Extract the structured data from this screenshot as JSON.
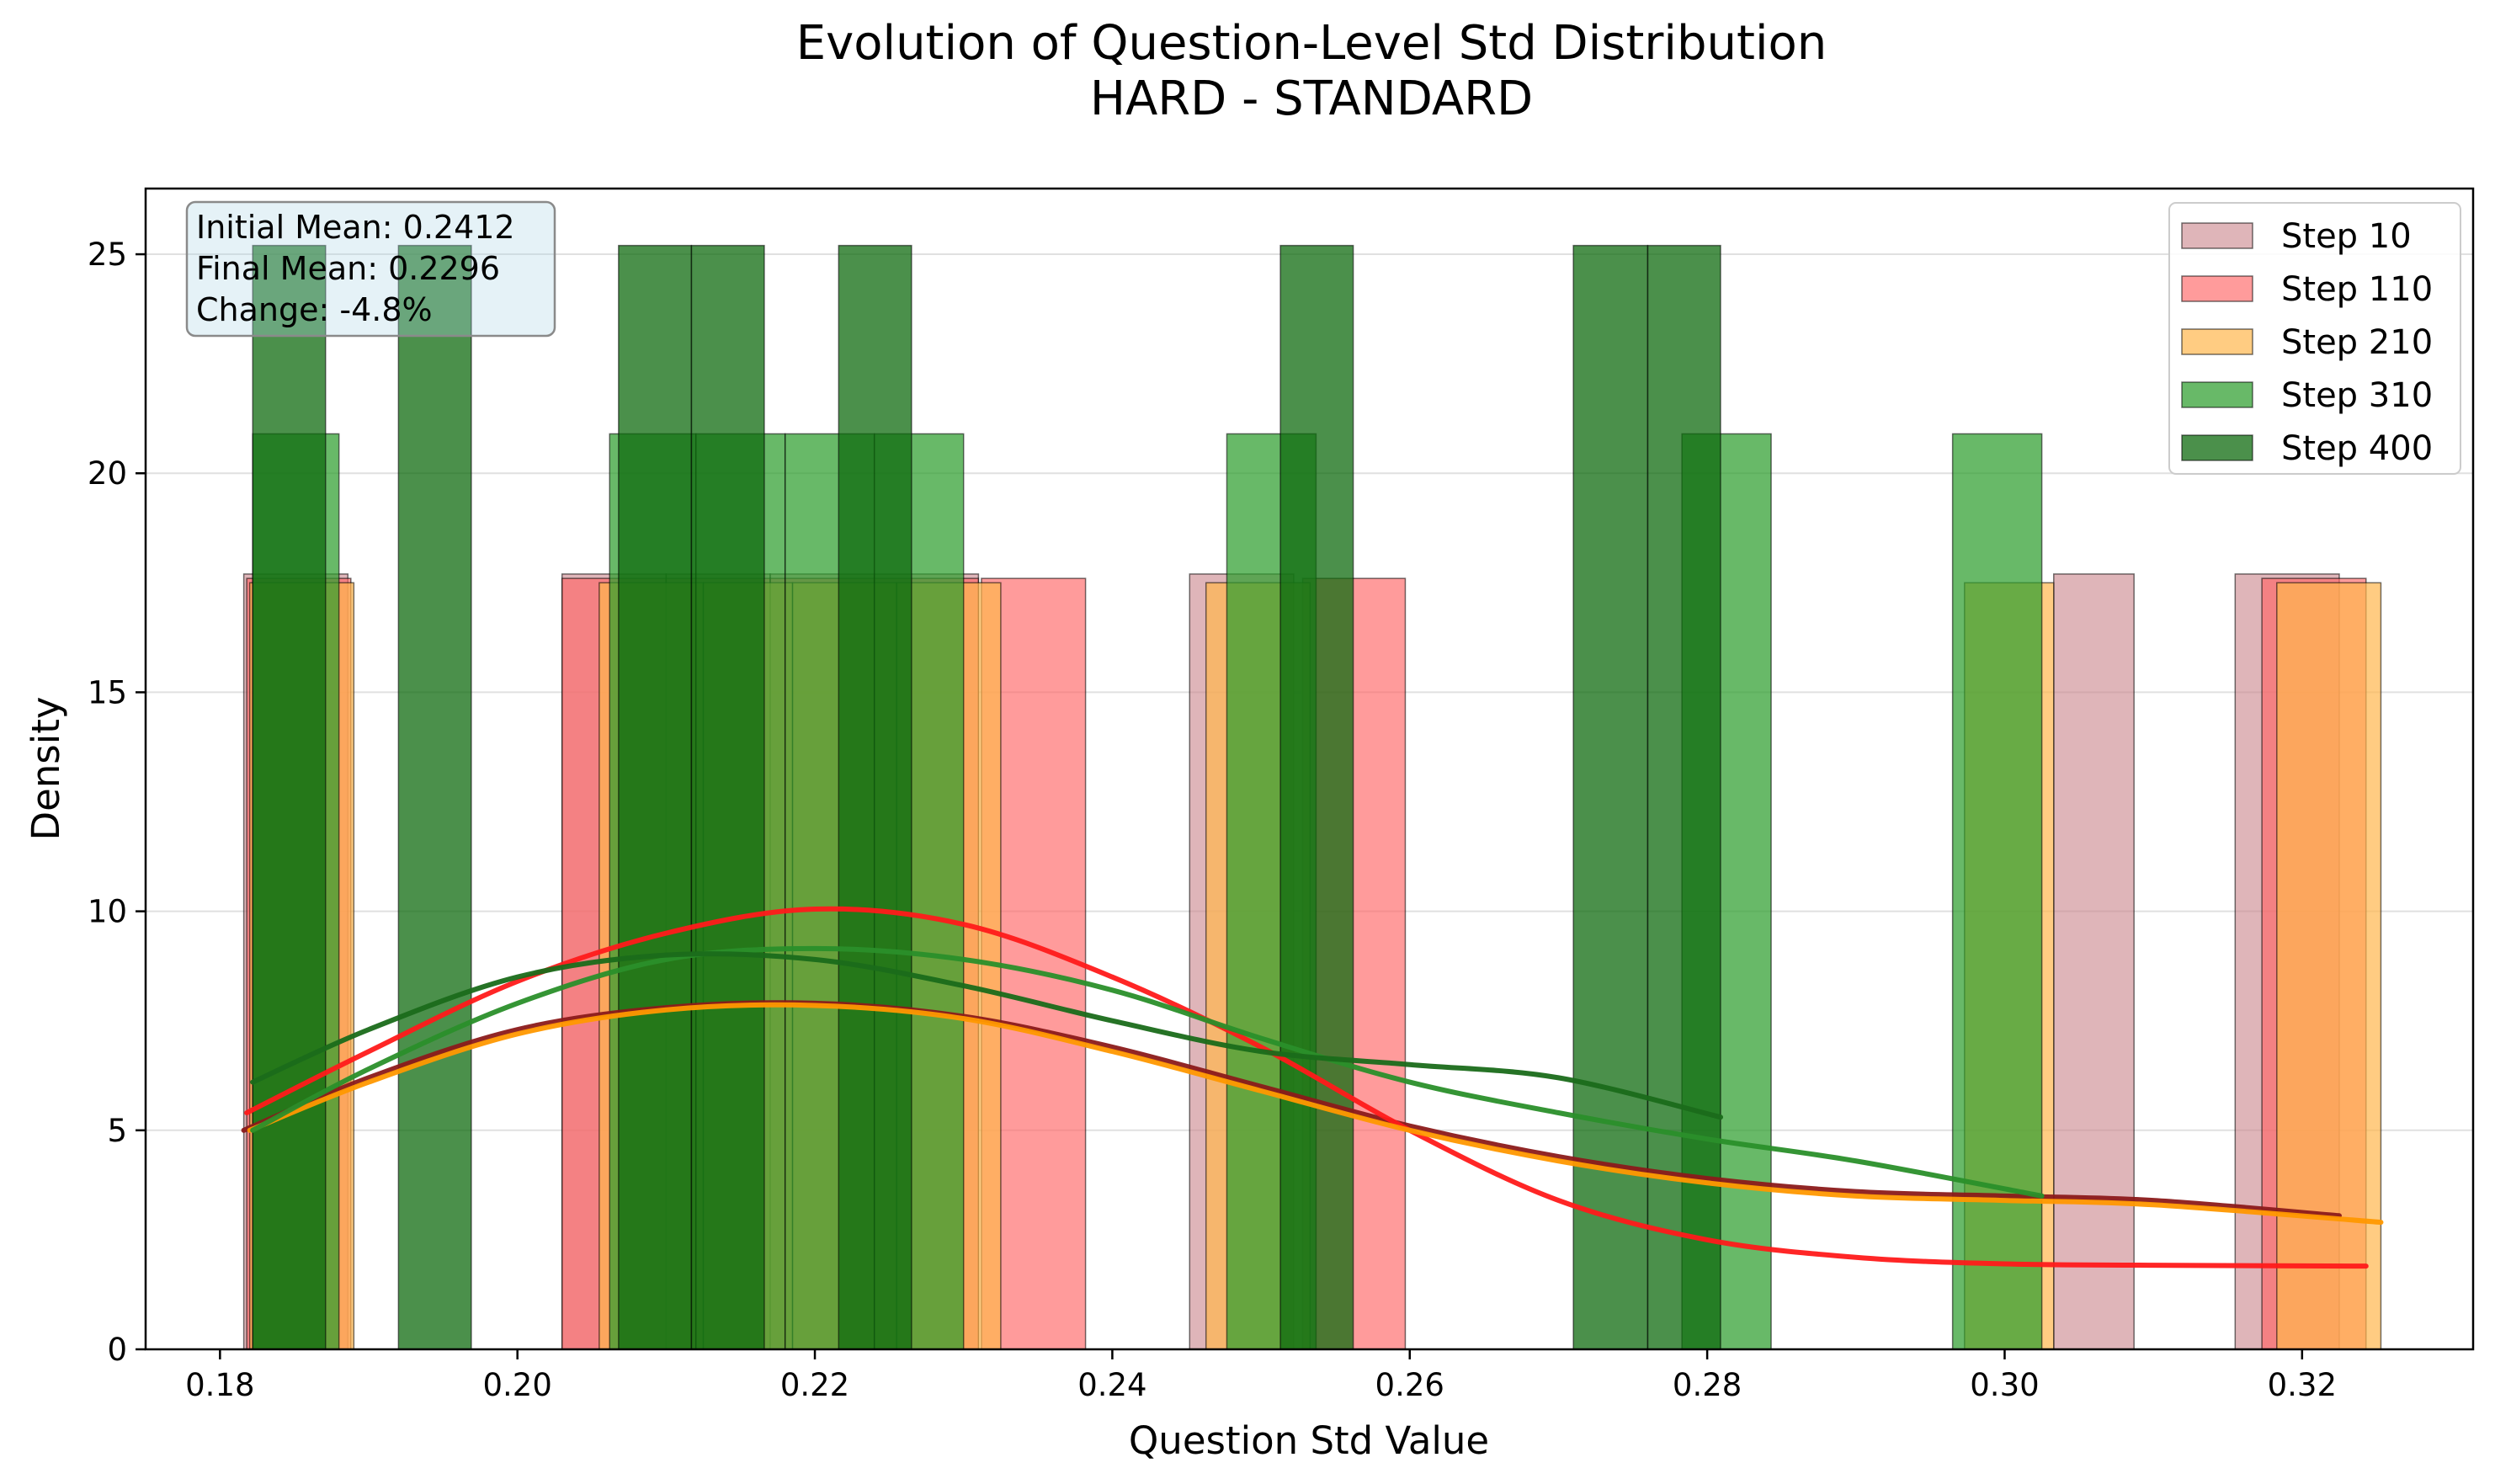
{
  "chart_data": {
    "type": "histogram",
    "title": "Evolution of Question-Level Std Distribution",
    "subtitle": "HARD - STANDARD",
    "xlabel": "Question Std Value",
    "ylabel": "Density",
    "xlim": [
      0.175,
      0.3315
    ],
    "ylim": [
      0,
      26.5
    ],
    "xticks": [
      "0.18",
      "0.20",
      "0.22",
      "0.24",
      "0.26",
      "0.28",
      "0.30",
      "0.32"
    ],
    "yticks": [
      "0",
      "5",
      "10",
      "15",
      "20",
      "25"
    ],
    "grid": "horizontal",
    "legend_position": "upper right",
    "stats_box": {
      "lines": [
        "Initial Mean: 0.2412",
        "Final Mean: 0.2296",
        "Change: -4.8%"
      ]
    },
    "series": [
      {
        "name": "Step 10",
        "color": "#c9848b",
        "alpha": 0.6,
        "bins": [
          [
            0.1816,
            0.1886,
            17.7
          ],
          [
            0.203,
            0.21,
            17.7
          ],
          [
            0.21,
            0.217,
            17.7
          ],
          [
            0.217,
            0.224,
            17.7
          ],
          [
            0.224,
            0.231,
            17.7
          ],
          [
            0.2452,
            0.2522,
            17.7
          ],
          [
            0.3033,
            0.3087,
            17.7
          ],
          [
            0.3155,
            0.3225,
            17.7
          ]
        ],
        "kde_color": "#8b1a1a",
        "kde": [
          [
            0.1816,
            5.0
          ],
          [
            0.19,
            6.2
          ],
          [
            0.2,
            7.3
          ],
          [
            0.21,
            7.8
          ],
          [
            0.22,
            7.9
          ],
          [
            0.23,
            7.6
          ],
          [
            0.24,
            6.9
          ],
          [
            0.25,
            6.0
          ],
          [
            0.26,
            5.1
          ],
          [
            0.27,
            4.4
          ],
          [
            0.28,
            3.9
          ],
          [
            0.29,
            3.6
          ],
          [
            0.3,
            3.5
          ],
          [
            0.31,
            3.4
          ],
          [
            0.3225,
            3.05
          ]
        ]
      },
      {
        "name": "Step 110",
        "color": "#ff6666",
        "alpha": 0.65,
        "bins": [
          [
            0.1818,
            0.1888,
            17.6
          ],
          [
            0.203,
            0.21,
            17.6
          ],
          [
            0.21,
            0.217,
            17.6
          ],
          [
            0.217,
            0.224,
            17.6
          ],
          [
            0.224,
            0.231,
            17.6
          ],
          [
            0.2312,
            0.2382,
            17.6
          ],
          [
            0.2528,
            0.2597,
            17.6
          ],
          [
            0.3173,
            0.3243,
            17.6
          ]
        ],
        "kde_color": "#ff1a1a",
        "kde": [
          [
            0.1818,
            5.4
          ],
          [
            0.19,
            6.8
          ],
          [
            0.2,
            8.4
          ],
          [
            0.21,
            9.5
          ],
          [
            0.22,
            10.05
          ],
          [
            0.23,
            9.7
          ],
          [
            0.24,
            8.5
          ],
          [
            0.25,
            6.9
          ],
          [
            0.26,
            5.0
          ],
          [
            0.27,
            3.4
          ],
          [
            0.28,
            2.5
          ],
          [
            0.29,
            2.1
          ],
          [
            0.3,
            1.95
          ],
          [
            0.31,
            1.92
          ],
          [
            0.3243,
            1.9
          ]
        ]
      },
      {
        "name": "Step 210",
        "color": "#ffb74d",
        "alpha": 0.7,
        "bins": [
          [
            0.182,
            0.189,
            17.5
          ],
          [
            0.2055,
            0.2125,
            17.5
          ],
          [
            0.2125,
            0.2185,
            17.5
          ],
          [
            0.2185,
            0.2255,
            17.5
          ],
          [
            0.2255,
            0.2325,
            17.5
          ],
          [
            0.2463,
            0.2533,
            17.5
          ],
          [
            0.2973,
            0.3033,
            17.5
          ],
          [
            0.3183,
            0.3253,
            17.5
          ]
        ],
        "kde_color": "#ff9800",
        "kde": [
          [
            0.182,
            5.0
          ],
          [
            0.19,
            6.1
          ],
          [
            0.2,
            7.2
          ],
          [
            0.21,
            7.75
          ],
          [
            0.22,
            7.85
          ],
          [
            0.23,
            7.55
          ],
          [
            0.24,
            6.8
          ],
          [
            0.25,
            5.9
          ],
          [
            0.26,
            5.0
          ],
          [
            0.27,
            4.3
          ],
          [
            0.28,
            3.8
          ],
          [
            0.29,
            3.5
          ],
          [
            0.3,
            3.4
          ],
          [
            0.31,
            3.3
          ],
          [
            0.3253,
            2.9
          ]
        ]
      },
      {
        "name": "Step 310",
        "color": "#2e9e2e",
        "alpha": 0.72,
        "bins": [
          [
            0.1822,
            0.188,
            20.9
          ],
          [
            0.2062,
            0.212,
            20.9
          ],
          [
            0.212,
            0.218,
            20.9
          ],
          [
            0.218,
            0.224,
            20.9
          ],
          [
            0.224,
            0.23,
            20.9
          ],
          [
            0.2477,
            0.2537,
            20.9
          ],
          [
            0.2783,
            0.2843,
            20.9
          ],
          [
            0.2965,
            0.3025,
            20.9
          ]
        ],
        "kde_color": "#2a8f2a",
        "kde": [
          [
            0.1822,
            5.0
          ],
          [
            0.19,
            6.4
          ],
          [
            0.2,
            7.9
          ],
          [
            0.21,
            8.9
          ],
          [
            0.22,
            9.15
          ],
          [
            0.23,
            8.9
          ],
          [
            0.24,
            8.2
          ],
          [
            0.25,
            7.1
          ],
          [
            0.26,
            6.1
          ],
          [
            0.27,
            5.4
          ],
          [
            0.28,
            4.8
          ],
          [
            0.29,
            4.3
          ],
          [
            0.3025,
            3.5
          ]
        ]
      },
      {
        "name": "Step 400",
        "color": "#0f6b0f",
        "alpha": 0.75,
        "bins": [
          [
            0.1822,
            0.1871,
            25.2
          ],
          [
            0.192,
            0.1969,
            25.2
          ],
          [
            0.2068,
            0.2117,
            25.2
          ],
          [
            0.2117,
            0.2166,
            25.2
          ],
          [
            0.2216,
            0.2265,
            25.2
          ],
          [
            0.2513,
            0.2562,
            25.2
          ],
          [
            0.271,
            0.276,
            25.2
          ],
          [
            0.276,
            0.2809,
            25.2
          ]
        ],
        "kde_color": "#1a6b1a",
        "kde": [
          [
            0.1822,
            6.1
          ],
          [
            0.19,
            7.3
          ],
          [
            0.2,
            8.5
          ],
          [
            0.21,
            9.0
          ],
          [
            0.22,
            8.9
          ],
          [
            0.23,
            8.3
          ],
          [
            0.24,
            7.5
          ],
          [
            0.25,
            6.8
          ],
          [
            0.26,
            6.5
          ],
          [
            0.27,
            6.2
          ],
          [
            0.2809,
            5.3
          ]
        ]
      }
    ]
  }
}
